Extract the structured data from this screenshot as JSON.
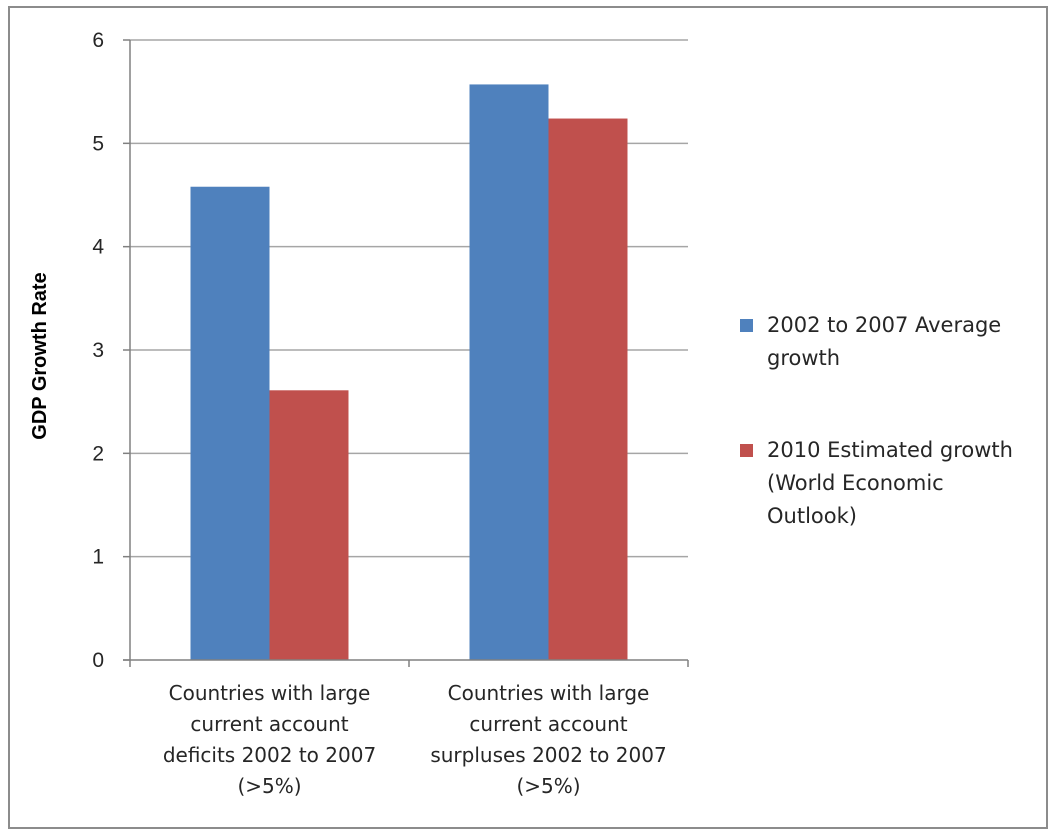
{
  "chart_data": {
    "type": "bar",
    "title": "",
    "xlabel": "",
    "ylabel": "GDP Growth Rate",
    "ylim": [
      0,
      6
    ],
    "yticks": [
      0,
      1,
      2,
      3,
      4,
      5,
      6
    ],
    "grid": true,
    "legend_position": "right",
    "categories": [
      [
        "Countries with large",
        "current account",
        "deficits 2002 to 2007",
        "(>5%)"
      ],
      [
        "Countries with large",
        "current account",
        "surpluses 2002 to 2007",
        "(>5%)"
      ]
    ],
    "series": [
      {
        "name": [
          "2002 to 2007 Average",
          "growth"
        ],
        "color": "#4f81bd",
        "values": [
          4.58,
          5.57
        ]
      },
      {
        "name": [
          "2010 Estimated growth",
          "(World Economic",
          "Outlook)"
        ],
        "color": "#c0504d",
        "values": [
          2.61,
          5.24
        ]
      }
    ]
  }
}
